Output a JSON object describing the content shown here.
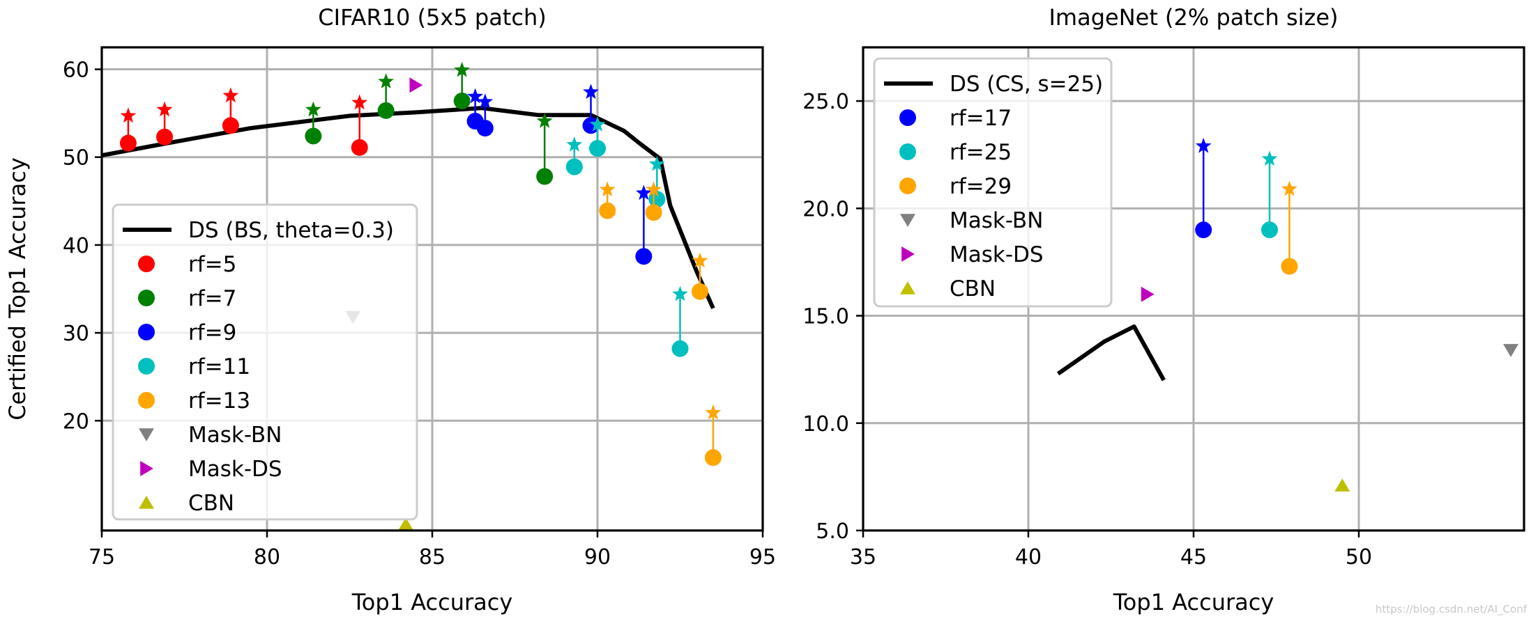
{
  "chart_data": [
    {
      "type": "scatter",
      "title": "CIFAR10 (5x5 patch)",
      "xlabel": "Top1 Accuracy",
      "ylabel": "Certified Top1 Accuracy",
      "xlim": [
        75,
        95
      ],
      "ylim": [
        7.5,
        62.5
      ],
      "xticks": [
        "75",
        "80",
        "85",
        "90",
        "95"
      ],
      "yticks": [
        "20",
        "30",
        "40",
        "50",
        "60"
      ],
      "xtick_values": [
        75,
        80,
        85,
        90,
        95
      ],
      "ytick_values": [
        20,
        30,
        40,
        50,
        60
      ],
      "grid": true,
      "legend_position": "lower-left",
      "line": {
        "name": "DS (BS, theta=0.3)",
        "color": "#000000",
        "x": [
          75.0,
          77.0,
          79.5,
          82.5,
          84.5,
          86.5,
          88.2,
          89.8,
          90.8,
          91.3,
          91.9,
          92.2,
          93.0,
          93.5
        ],
        "y": [
          50.2,
          51.6,
          53.3,
          54.7,
          55.1,
          55.6,
          54.8,
          54.8,
          53.0,
          51.5,
          49.8,
          44.5,
          37.0,
          32.8
        ]
      },
      "series": [
        {
          "name": "rf=5",
          "color": "#ff0000",
          "base_x": [
            75.8,
            76.9,
            78.9,
            82.8
          ],
          "base_y": [
            51.6,
            52.3,
            53.6,
            51.1
          ],
          "cert_y": [
            54.7,
            55.4,
            57.0,
            56.2
          ]
        },
        {
          "name": "rf=7",
          "color": "#008000",
          "base_x": [
            81.4,
            83.6,
            85.9,
            88.4
          ],
          "base_y": [
            52.4,
            55.3,
            56.4,
            47.8
          ],
          "cert_y": [
            55.4,
            58.6,
            59.9,
            54.1
          ]
        },
        {
          "name": "rf=9",
          "color": "#0000ff",
          "base_x": [
            86.3,
            86.6,
            89.8,
            91.4
          ],
          "base_y": [
            54.1,
            53.3,
            53.6,
            38.7
          ],
          "cert_y": [
            56.9,
            56.3,
            57.4,
            45.9
          ]
        },
        {
          "name": "rf=11",
          "color": "#00bfbf",
          "base_x": [
            89.3,
            90.0,
            91.8,
            92.5
          ],
          "base_y": [
            48.9,
            51.0,
            45.2,
            28.2
          ],
          "cert_y": [
            51.4,
            53.7,
            49.2,
            34.4
          ]
        },
        {
          "name": "rf=13",
          "color": "#ffa500",
          "base_x": [
            90.3,
            91.7,
            93.1,
            93.5
          ],
          "base_y": [
            43.9,
            43.7,
            34.7,
            15.8
          ],
          "cert_y": [
            46.3,
            46.3,
            38.2,
            20.9
          ]
        }
      ],
      "markers": [
        {
          "name": "Mask-BN",
          "color": "#808080",
          "shape": "triangle-down",
          "x": [
            82.6
          ],
          "y": [
            31.8
          ]
        },
        {
          "name": "Mask-DS",
          "color": "#bf00bf",
          "shape": "triangle-right",
          "x": [
            84.5
          ],
          "y": [
            58.2
          ]
        },
        {
          "name": "CBN",
          "color": "#bfbf00",
          "shape": "triangle-up",
          "x": [
            84.2
          ],
          "y": [
            8.2
          ]
        }
      ]
    },
    {
      "type": "scatter",
      "title": "ImageNet (2% patch size)",
      "xlabel": "Top1 Accuracy",
      "ylabel": "",
      "xlim": [
        35,
        55
      ],
      "ylim": [
        5.0,
        27.5
      ],
      "xticks": [
        "35",
        "40",
        "45",
        "50"
      ],
      "yticks": [
        "5.0",
        "10.0",
        "15.0",
        "20.0",
        "25.0"
      ],
      "xtick_values": [
        35,
        40,
        45,
        50
      ],
      "ytick_values": [
        5.0,
        10.0,
        15.0,
        20.0,
        25.0
      ],
      "grid": true,
      "legend_position": "upper-left",
      "line": {
        "name": "DS (CS, s=25)",
        "color": "#000000",
        "x": [
          40.9,
          42.3,
          43.2,
          44.1
        ],
        "y": [
          12.3,
          13.8,
          14.5,
          12.0
        ]
      },
      "series": [
        {
          "name": "rf=17",
          "color": "#0000ff",
          "base_x": [
            45.3
          ],
          "base_y": [
            19.0
          ],
          "cert_y": [
            22.9
          ]
        },
        {
          "name": "rf=25",
          "color": "#00bfbf",
          "base_x": [
            47.3
          ],
          "base_y": [
            19.0
          ],
          "cert_y": [
            22.3
          ]
        },
        {
          "name": "rf=29",
          "color": "#ffa500",
          "base_x": [
            47.9
          ],
          "base_y": [
            17.3
          ],
          "cert_y": [
            20.9
          ]
        }
      ],
      "markers": [
        {
          "name": "Mask-BN",
          "color": "#808080",
          "shape": "triangle-down",
          "x": [
            54.6
          ],
          "y": [
            13.4
          ]
        },
        {
          "name": "Mask-DS",
          "color": "#bf00bf",
          "shape": "triangle-right",
          "x": [
            43.6
          ],
          "y": [
            16.0
          ]
        },
        {
          "name": "CBN",
          "color": "#bfbf00",
          "shape": "triangle-up",
          "x": [
            49.5
          ],
          "y": [
            7.1
          ]
        }
      ]
    }
  ],
  "watermark": "https://blog.csdn.net/AI_Conf"
}
